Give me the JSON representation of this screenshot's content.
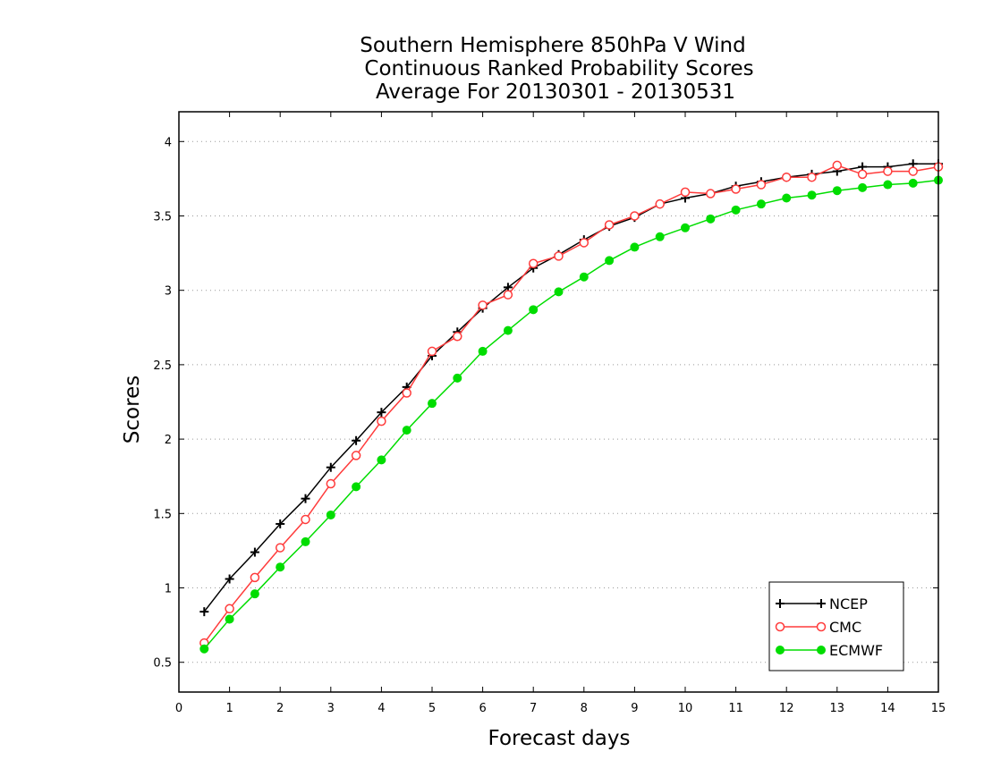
{
  "chart_data": {
    "type": "line",
    "title_lines": [
      "Southern Hemisphere 850hPa V Wind",
      "Continuous Ranked Probability Scores",
      "Average For 20130301 - 20130531"
    ],
    "xlabel": "Forecast days",
    "ylabel": "Scores",
    "xlim": [
      0,
      15
    ],
    "ylim": [
      0.3,
      4.2
    ],
    "xticks": [
      "0",
      "1",
      "2",
      "3",
      "4",
      "5",
      "6",
      "7",
      "8",
      "9",
      "10",
      "11",
      "12",
      "13",
      "14",
      "15"
    ],
    "yticks": [
      "0.5",
      "1",
      "1.5",
      "2",
      "2.5",
      "3",
      "3.5",
      "4"
    ],
    "grid": "horizontal dotted",
    "legend_position": "bottom-right",
    "x": [
      0.5,
      1,
      1.5,
      2,
      2.5,
      3,
      3.5,
      4,
      4.5,
      5,
      5.5,
      6,
      6.5,
      7,
      7.5,
      8,
      8.5,
      9,
      9.5,
      10,
      10.5,
      11,
      11.5,
      12,
      12.5,
      13,
      13.5,
      14,
      14.5,
      15
    ],
    "series": [
      {
        "name": "NCEP",
        "color": "#000000",
        "marker": "plus",
        "values": [
          0.84,
          1.06,
          1.24,
          1.43,
          1.6,
          1.81,
          1.99,
          2.18,
          2.35,
          2.56,
          2.72,
          2.88,
          3.02,
          3.15,
          3.24,
          3.34,
          3.43,
          3.49,
          3.58,
          3.62,
          3.65,
          3.7,
          3.73,
          3.76,
          3.78,
          3.8,
          3.83,
          3.83,
          3.85,
          3.85
        ]
      },
      {
        "name": "CMC",
        "color": "#ff3b3b",
        "marker": "open-circle",
        "values": [
          0.63,
          0.86,
          1.07,
          1.27,
          1.46,
          1.7,
          1.89,
          2.12,
          2.31,
          2.59,
          2.69,
          2.9,
          2.97,
          3.18,
          3.23,
          3.32,
          3.44,
          3.5,
          3.58,
          3.66,
          3.65,
          3.68,
          3.71,
          3.76,
          3.76,
          3.84,
          3.78,
          3.8,
          3.8,
          3.83
        ]
      },
      {
        "name": "ECMWF",
        "color": "#00dd00",
        "marker": "filled-circle",
        "values": [
          0.59,
          0.79,
          0.96,
          1.14,
          1.31,
          1.49,
          1.68,
          1.86,
          2.06,
          2.24,
          2.41,
          2.59,
          2.73,
          2.87,
          2.99,
          3.09,
          3.2,
          3.29,
          3.36,
          3.42,
          3.48,
          3.54,
          3.58,
          3.62,
          3.64,
          3.67,
          3.69,
          3.71,
          3.72,
          3.74
        ]
      }
    ]
  }
}
